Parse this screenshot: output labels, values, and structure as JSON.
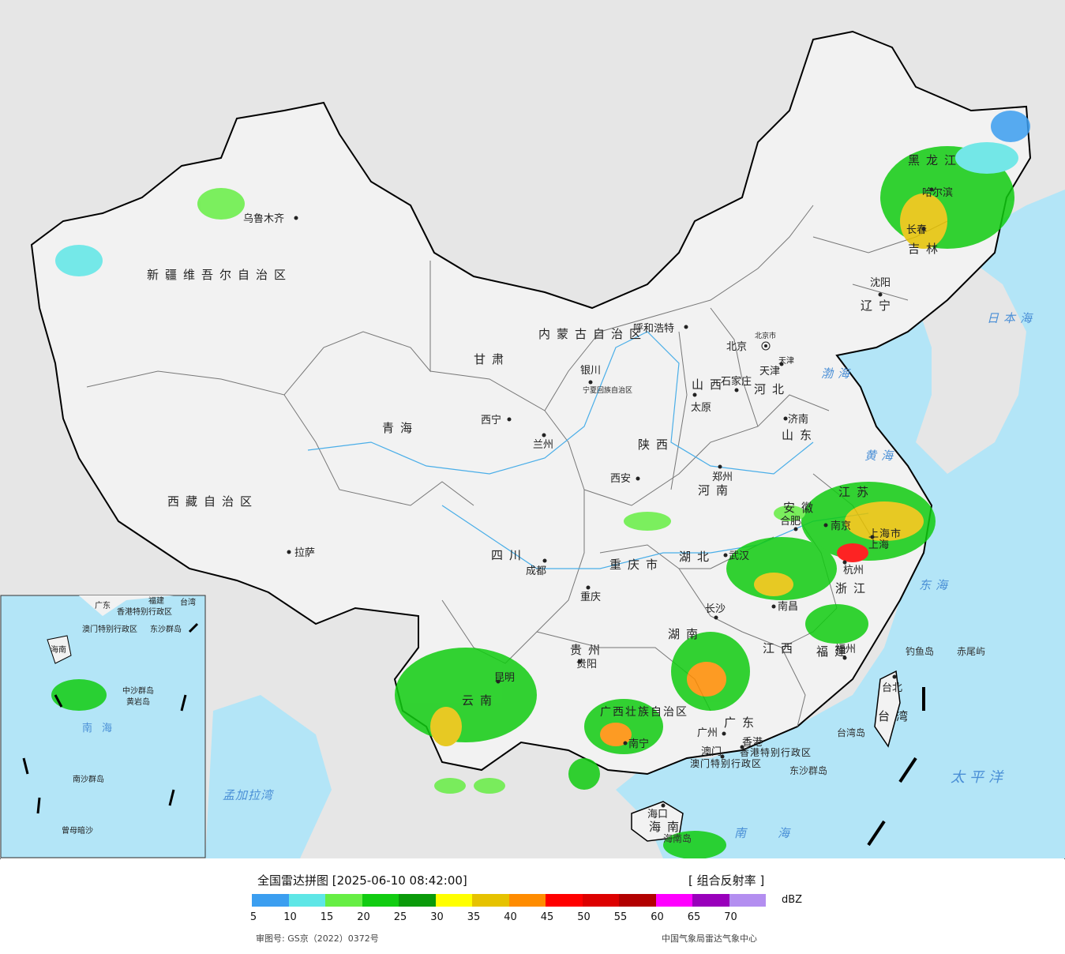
{
  "legend": {
    "title": "全国雷达拼图 [2025-06-10 08:42:00]",
    "product": "[ 组合反射率 ]",
    "unit": "dBZ",
    "ticks": [
      "5",
      "10",
      "15",
      "20",
      "25",
      "30",
      "35",
      "40",
      "45",
      "50",
      "55",
      "60",
      "65",
      "70"
    ],
    "colors": [
      "#3b9ef0",
      "#5ee6e6",
      "#66ee44",
      "#11cc11",
      "#0a9a0a",
      "#ffff00",
      "#e6c200",
      "#ff8c00",
      "#ff0000",
      "#dd0000",
      "#b20000",
      "#ff00ff",
      "#9900bb",
      "#b38ef0"
    ],
    "approval": "审图号: GS京（2022）0372号",
    "source": "中国气象局雷达气象中心"
  },
  "colors": {
    "land": "#f2f2f2",
    "sea": "#b3e5f7",
    "outer_land": "#e6e6e6",
    "border": "#000000",
    "river": "#4aaee8"
  },
  "provinces": [
    "新疆维吾尔自治区",
    "西藏自治区",
    "青海",
    "甘肃",
    "内蒙古自治区",
    "黑龙江",
    "吉林",
    "辽宁",
    "河北",
    "山西",
    "陕西",
    "四川",
    "云南",
    "贵州",
    "重庆市",
    "湖北",
    "湖南",
    "河南",
    "山东",
    "安徽",
    "江苏",
    "浙江",
    "江西",
    "福建",
    "广东",
    "广西壮族自治区",
    "海南",
    "上海市",
    "台湾",
    "天津",
    "宁夏回族自治区",
    "香港特别行政区",
    "澳门特别行政区",
    "北京市"
  ],
  "cities": [
    "乌鲁木齐",
    "拉萨",
    "西宁",
    "兰州",
    "银川",
    "呼和浩特",
    "北京",
    "天津",
    "石家庄",
    "太原",
    "济南",
    "西安",
    "郑州",
    "合肥",
    "南京",
    "上海",
    "杭州",
    "武汉",
    "长沙",
    "南昌",
    "福州",
    "台北",
    "重庆",
    "成都",
    "贵阳",
    "昆明",
    "南宁",
    "广州",
    "香港",
    "澳门",
    "海口",
    "沈阳",
    "长春",
    "哈尔滨"
  ],
  "seas": [
    "日本海",
    "渤海",
    "黄海",
    "东海",
    "太平洋",
    "南海",
    "孟加拉湾"
  ],
  "islands": [
    "钓鱼岛",
    "赤尾屿",
    "台湾岛",
    "东沙群岛",
    "海南岛"
  ],
  "inset_labels": [
    "广东",
    "福建",
    "台湾",
    "香港特别行政区",
    "澳门特别行政区",
    "海南",
    "东沙群岛",
    "中沙群岛",
    "南海",
    "南沙群岛",
    "曾母暗沙",
    "黄岩岛"
  ]
}
